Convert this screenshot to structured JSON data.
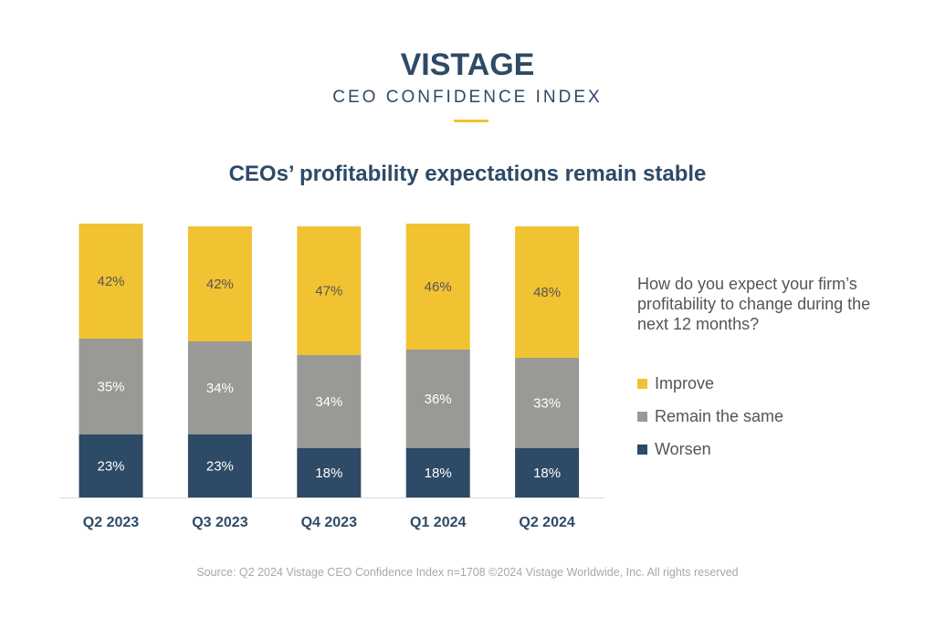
{
  "header": {
    "brand": "VISTAGE",
    "subtitle": "CEO CONFIDENCE INDEX",
    "accent_color": "#f1c232",
    "brand_color": "#2d4a66"
  },
  "question": "How do you expect your firm’s profitability to change during the next 12 months?",
  "source": "Source: Q2 2024 Vistage CEO Confidence Index n=1708 ©2024 Vistage Worldwide, Inc. All rights reserved",
  "chart_data": {
    "type": "bar",
    "stacked": true,
    "title": "CEOs’ profitability expectations remain stable",
    "categories": [
      "Q2 2023",
      "Q3 2023",
      "Q4 2023",
      "Q1 2024",
      "Q2 2024"
    ],
    "series": [
      {
        "name": "Worsen",
        "color": "#2d4a66",
        "values": [
          23,
          23,
          18,
          18,
          18
        ],
        "labels": [
          "23%",
          "23%",
          "18%",
          "18%",
          "18%"
        ]
      },
      {
        "name": "Remain the same",
        "color": "#999996",
        "values": [
          35,
          34,
          34,
          36,
          33
        ],
        "labels": [
          "35%",
          "34%",
          "34%",
          "36%",
          "33%"
        ]
      },
      {
        "name": "Improve",
        "color": "#f1c232",
        "values": [
          42,
          42,
          47,
          46,
          48
        ],
        "labels": [
          "42%",
          "42%",
          "47%",
          "46%",
          "48%"
        ]
      }
    ],
    "ylim": [
      0,
      100
    ],
    "grid": false,
    "legend_position": "right",
    "legend": [
      {
        "name": "Improve",
        "color": "#f1c232"
      },
      {
        "name": "Remain the same",
        "color": "#999996"
      },
      {
        "name": "Worsen",
        "color": "#2d4a66"
      }
    ]
  }
}
